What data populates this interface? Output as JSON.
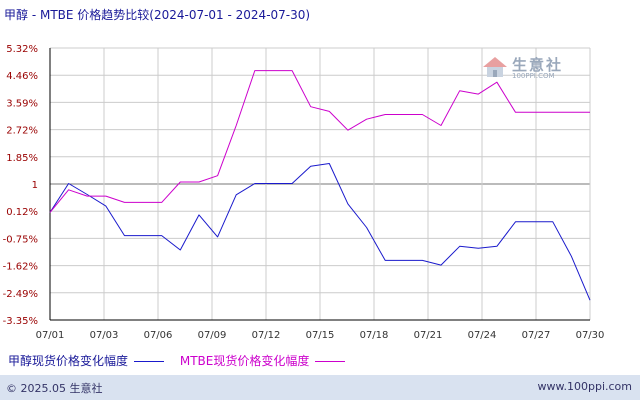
{
  "title": "甲醇 - MTBE 价格趋势比较(2024-07-01 - 2024-07-30)",
  "watermark": {
    "name": "生意社",
    "url": "100PPI.COM"
  },
  "footer": {
    "copyright": "© 2025.05 生意社",
    "site": "www.100ppi.com"
  },
  "colors": {
    "series0": "#1a1acc",
    "series1": "#cc00cc",
    "grid": "#cccccc",
    "axis": "#000000",
    "footer_bg": "#d9e2f0"
  },
  "chart_data": {
    "type": "line",
    "title": "甲醇 - MTBE 价格趋势比较(2024-07-01 - 2024-07-30)",
    "xlabel": "",
    "ylabel": "",
    "x_labels": [
      "07/01",
      "07/03",
      "07/06",
      "07/09",
      "07/12",
      "07/15",
      "07/18",
      "07/21",
      "07/24",
      "07/27",
      "07/30"
    ],
    "y_tick_labels": [
      "5.32%",
      "4.46%",
      "3.59%",
      "2.72%",
      "1.85%",
      "1",
      "0.12%",
      "-0.75%",
      "-1.62%",
      "-2.49%",
      "-3.35%"
    ],
    "ylim": [
      -3.35,
      5.32
    ],
    "x_index_range": [
      1,
      30
    ],
    "grid": true,
    "legend_position": "bottom-left",
    "series": [
      {
        "name": "甲醇现货价格变化幅度",
        "x": [
          1,
          2,
          3,
          4,
          5,
          6,
          7,
          8,
          9,
          10,
          11,
          12,
          13,
          14,
          15,
          16,
          17,
          18,
          19,
          20,
          21,
          22,
          23,
          24,
          25,
          26,
          27,
          28,
          29,
          30
        ],
        "values": [
          0.08,
          1.0,
          0.65,
          0.28,
          -0.66,
          -0.66,
          -0.66,
          -1.12,
          0.0,
          -0.7,
          0.64,
          1.0,
          1.0,
          1.0,
          1.55,
          1.64,
          0.35,
          -0.4,
          -1.45,
          -1.45,
          -1.45,
          -1.6,
          -1.0,
          -1.06,
          -1.0,
          -0.22,
          -0.22,
          -0.22,
          -1.32,
          -2.72
        ]
      },
      {
        "name": "MTBE现货价格变化幅度",
        "x": [
          1,
          2,
          3,
          4,
          5,
          6,
          7,
          8,
          9,
          10,
          11,
          12,
          13,
          14,
          15,
          16,
          17,
          18,
          19,
          20,
          21,
          22,
          23,
          24,
          25,
          26,
          27,
          28,
          29,
          30
        ],
        "values": [
          0.08,
          0.8,
          0.6,
          0.6,
          0.4,
          0.4,
          0.4,
          1.05,
          1.05,
          1.25,
          2.85,
          4.6,
          4.6,
          4.6,
          3.45,
          3.3,
          2.7,
          3.05,
          3.2,
          3.2,
          3.2,
          2.85,
          3.96,
          3.85,
          4.23,
          3.27,
          3.27,
          3.27,
          3.27,
          3.27
        ]
      }
    ]
  }
}
